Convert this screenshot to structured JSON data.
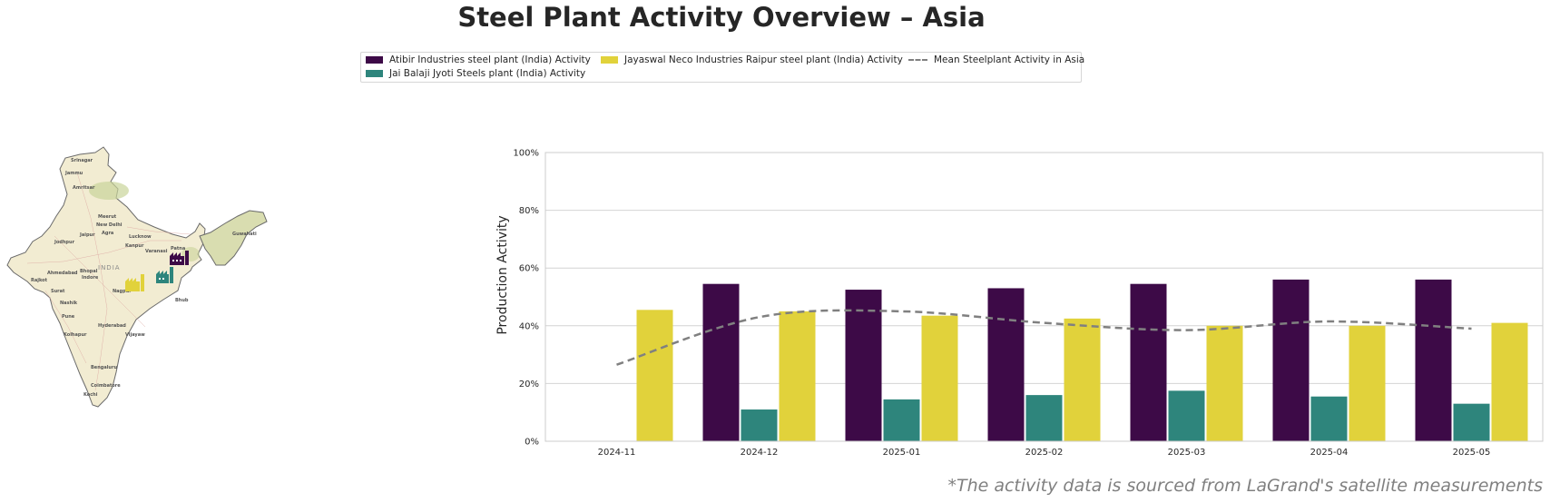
{
  "title": "Steel Plant Activity Overview – Asia",
  "legend": {
    "items": [
      {
        "label": "Atibir Industries steel plant (India) Activity",
        "color": "#3d0a47",
        "kind": "bar"
      },
      {
        "label": "Jai Balaji Jyoti Steels plant (India) Activity",
        "color": "#2e857c",
        "kind": "bar"
      },
      {
        "label": "Jayaswal Neco Industries Raipur steel plant (India) Activity",
        "color": "#e1d23b",
        "kind": "bar"
      },
      {
        "label": "Mean Steelplant Activity in Asia",
        "color": "#808080",
        "kind": "dashed-line"
      }
    ]
  },
  "map": {
    "country_label": "INDIA",
    "cities": [
      "Srinagar",
      "Jammu",
      "Amritsar",
      "Meerut",
      "New Delhi",
      "Jaipur",
      "Agra",
      "Lucknow",
      "Jodhpur",
      "Kanpur",
      "Varanasi",
      "Patna",
      "Guwahati",
      "Ahmedabad",
      "Bhopal",
      "Indore",
      "Rajkot",
      "Surat",
      "Nagpur",
      "Nashik",
      "Pune",
      "Kolhapur",
      "Hyderabad",
      "Vijayaw",
      "Bengaluru",
      "Coimbatore",
      "Kochi",
      "Bhub"
    ]
  },
  "chart_data": {
    "type": "bar",
    "categories": [
      "2024-11",
      "2024-12",
      "2025-01",
      "2025-02",
      "2025-03",
      "2025-04",
      "2025-05"
    ],
    "series": [
      {
        "name": "Atibir Industries steel plant (India) Activity",
        "color": "#3d0a47",
        "values": [
          null,
          54.5,
          52.5,
          53,
          54.5,
          56,
          56
        ]
      },
      {
        "name": "Jai Balaji Jyoti Steels plant (India) Activity",
        "color": "#2e857c",
        "values": [
          null,
          11,
          14.5,
          16,
          17.5,
          15.5,
          13
        ]
      },
      {
        "name": "Jayaswal Neco Industries Raipur steel plant (India) Activity",
        "color": "#e1d23b",
        "values": [
          45.5,
          45,
          43.5,
          42.5,
          40,
          40,
          41
        ]
      }
    ],
    "line": {
      "name": "Mean Steelplant Activity in Asia",
      "color": "#808080",
      "style": "dashed",
      "values": [
        26.5,
        43,
        45,
        41,
        38.5,
        41.5,
        39
      ]
    },
    "ylabel": "Production Activity",
    "ylim": [
      0,
      100
    ],
    "yticks": [
      0,
      20,
      40,
      60,
      80,
      100
    ],
    "ytick_labels": [
      "0%",
      "20%",
      "40%",
      "60%",
      "80%",
      "100%"
    ],
    "grid": "horizontal",
    "legend_placement": "top-center"
  },
  "footnote": "*The activity data is sourced from LaGrand's satellite measurements"
}
